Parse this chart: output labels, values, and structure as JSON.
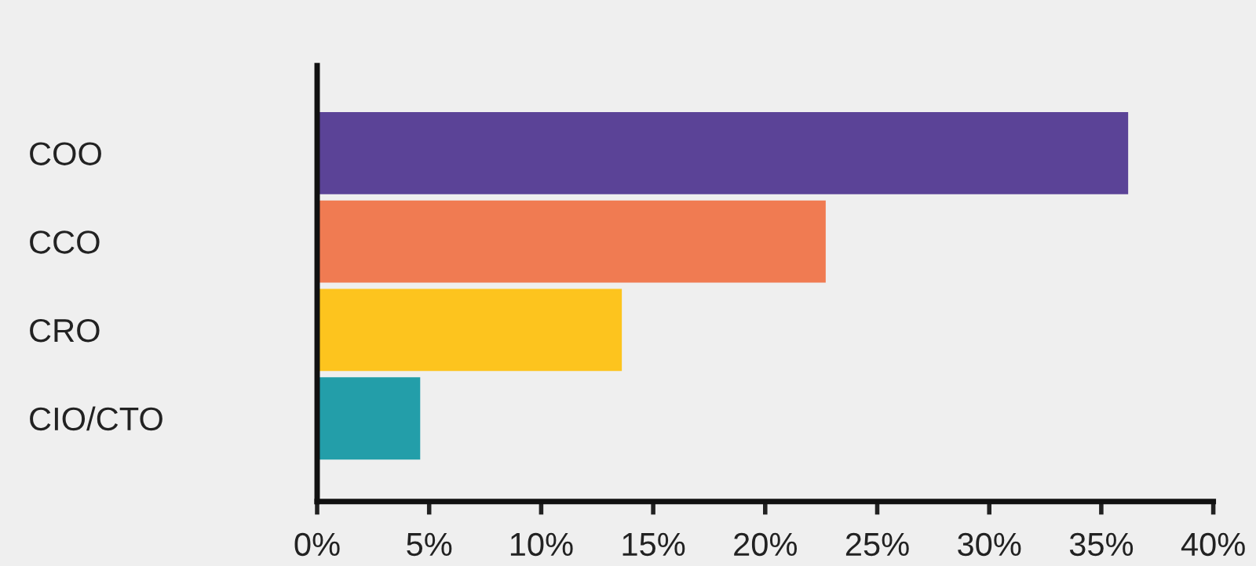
{
  "chart_data": {
    "type": "bar",
    "orientation": "horizontal",
    "categories": [
      "COO",
      "CCO",
      "CRO",
      "CIO/CTO"
    ],
    "values": [
      36.2,
      22.7,
      13.6,
      4.6
    ],
    "colors": [
      "#5b4397",
      "#f07b52",
      "#fdc41e",
      "#239ea9"
    ],
    "xlim": [
      0,
      40
    ],
    "xticks": [
      {
        "value": 0,
        "label": "0%"
      },
      {
        "value": 5,
        "label": "5%"
      },
      {
        "value": 10,
        "label": "10%"
      },
      {
        "value": 15,
        "label": "15%"
      },
      {
        "value": 20,
        "label": "20%"
      },
      {
        "value": 25,
        "label": "25%"
      },
      {
        "value": 30,
        "label": "30%"
      },
      {
        "value": 35,
        "label": "35%"
      },
      {
        "value": 40,
        "label": "40%"
      }
    ],
    "grid": false,
    "legend": false
  }
}
